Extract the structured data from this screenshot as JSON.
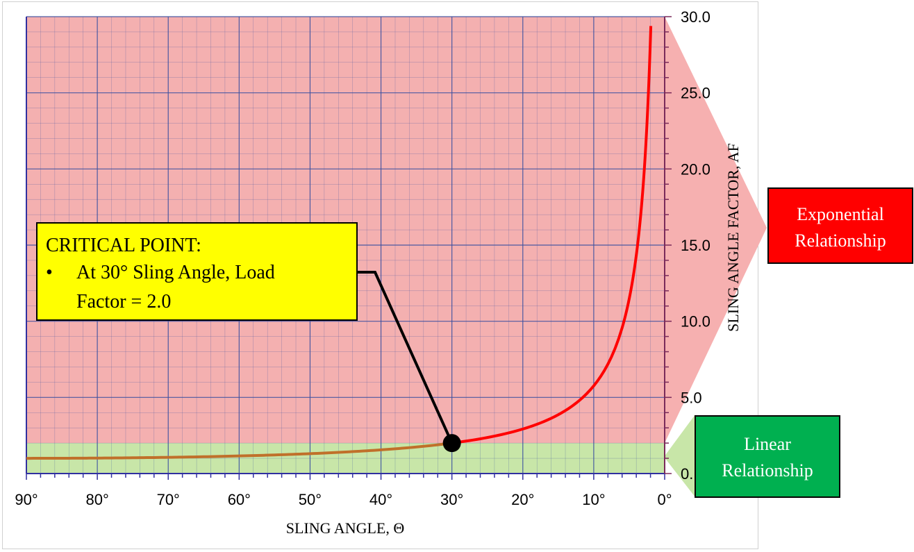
{
  "chart_data": {
    "type": "line",
    "xlabel": "SLING ANGLE, Θ",
    "ylabel": "SLING ANGLE FACTOR, AF",
    "x_direction": "reversed",
    "xlim": [
      90,
      0
    ],
    "ylim": [
      0,
      30
    ],
    "x_ticks": [
      "90°",
      "80°",
      "70°",
      "60°",
      "50°",
      "40°",
      "30°",
      "20°",
      "10°",
      "0°"
    ],
    "y_ticks": [
      "0.",
      "5.0",
      "10.0",
      "15.0",
      "20.0",
      "25.0",
      "30.0"
    ],
    "grid": true,
    "series": [
      {
        "formula": "1/sin(angle)",
        "x": [
          90,
          80,
          70,
          60,
          50,
          45,
          40,
          35,
          30,
          25,
          20,
          15,
          10,
          8,
          6,
          5,
          4,
          3,
          2.5,
          2
        ],
        "y": [
          1.0,
          1.015,
          1.064,
          1.155,
          1.305,
          1.414,
          1.556,
          1.743,
          2.0,
          2.366,
          2.924,
          3.864,
          5.759,
          7.185,
          9.567,
          11.474,
          14.336,
          19.107,
          22.926,
          28.654
        ],
        "color": "#ff0000"
      }
    ],
    "bands": [
      {
        "y_range": [
          2,
          30
        ],
        "color": "#f4b0b0"
      },
      {
        "y_range": [
          0,
          2
        ],
        "color": "#c8e6a8"
      }
    ],
    "critical_point": {
      "x": 30,
      "y": 2.0
    }
  },
  "annotations": {
    "critical": {
      "title": "CRITICAL POINT:",
      "bullet": "•",
      "line1": "At 30° Sling Angle, Load",
      "line2": "Factor = 2.0"
    },
    "exponential": {
      "line1": "Exponential",
      "line2": "Relationship",
      "color": "#ff0000"
    },
    "linear": {
      "line1": "Linear",
      "line2": "Relationship",
      "color": "#00b050"
    }
  },
  "colors": {
    "curve_upper": "#ff0000",
    "curve_lower": "#c0702a",
    "grid": "#3a4fa0",
    "axis": "#3030a0",
    "callout_fill": "#ffff00"
  }
}
